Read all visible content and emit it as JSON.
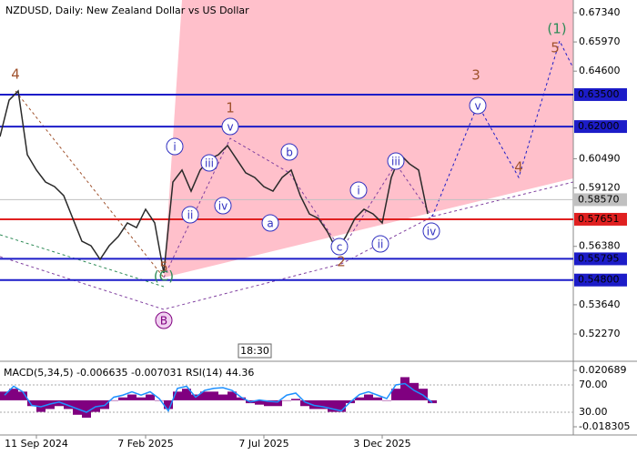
{
  "chart_data": [
    {
      "type": "line",
      "title": "NZDUSD, Daily:  New Zealand Dollar vs US Dollar",
      "categories": [
        null,
        null,
        null,
        null,
        "11 Sep 2024",
        null,
        null,
        null,
        null,
        null,
        null,
        null,
        null,
        null,
        null,
        null,
        "7 Feb 2025",
        null,
        null,
        null,
        null,
        null,
        null,
        null,
        null,
        null,
        null,
        null,
        null,
        "7 Jul 2025",
        null,
        null,
        null,
        null,
        null,
        null,
        null,
        null,
        null,
        null,
        null,
        null,
        "3 Dec 2025",
        null,
        null,
        null,
        null,
        null,
        null,
        null,
        null,
        null,
        null,
        null,
        null,
        null,
        null,
        null,
        null,
        null,
        null,
        null,
        null,
        null
      ],
      "values": [
        0.6153,
        0.6324,
        0.6367,
        0.6068,
        0.5996,
        0.594,
        0.5918,
        0.5876,
        0.5769,
        0.5662,
        0.5641,
        0.5577,
        0.5641,
        0.5684,
        0.5748,
        0.5726,
        0.5812,
        0.5748,
        0.5513,
        0.594,
        0.5996,
        0.5897,
        0.5996,
        0.6047,
        0.6068,
        0.6111,
        0.6047,
        0.5983,
        0.5961,
        0.5918,
        0.5897,
        0.5961,
        0.5996,
        0.5876,
        0.579,
        0.5769,
        0.5705,
        0.562,
        0.5684,
        0.5769,
        0.5812,
        0.579,
        0.5748,
        0.5961,
        0.6068,
        0.6025,
        0.5996,
        0.579,
        null,
        null,
        null,
        null,
        null,
        null,
        null,
        null,
        null,
        null,
        null,
        null,
        null,
        null,
        null,
        null
      ],
      "color": "#2a2a2a",
      "ylim": [
        0.5227,
        0.6734
      ],
      "yticks": [
        {
          "value": 0.6734,
          "label": "0.67340"
        },
        {
          "value": 0.6597,
          "label": "0.65970"
        },
        {
          "value": 0.646,
          "label": "0.64600"
        },
        {
          "value": 0.6049,
          "label": "0.60490"
        },
        {
          "value": 0.5912,
          "label": "0.59120"
        },
        {
          "value": 0.5638,
          "label": "0.56380"
        },
        {
          "value": 0.5364,
          "label": "0.53640"
        },
        {
          "value": 0.5227,
          "label": "0.52270"
        }
      ],
      "levels": [
        {
          "value": 0.635,
          "label": "0.63500",
          "color": "#1c1cc8"
        },
        {
          "value": 0.62,
          "label": "0.62000",
          "color": "#1c1cc8"
        },
        {
          "value": 0.5857,
          "label": "0.58570",
          "color": "#c0c0c0"
        },
        {
          "value": 0.57651,
          "label": "0.57651",
          "color": "#e02020"
        },
        {
          "value": 0.55795,
          "label": "0.55795",
          "color": "#1c1cc8"
        },
        {
          "value": 0.548,
          "label": "0.54800",
          "color": "#1c1cc8"
        }
      ],
      "annotations": [
        "4",
        "1",
        "3",
        "(1)",
        "5",
        "4",
        "5",
        "(C)",
        "B",
        "2",
        "i",
        "ii",
        "iii",
        "iv",
        "v",
        "a",
        "b",
        "c",
        "i",
        "ii",
        "iii",
        "iv",
        "v"
      ],
      "time_label": "18:30"
    },
    {
      "type": "bar",
      "title": "MACD(5,34,5) -0.006635 -0.007031 RSI(14) 44.36",
      "values": [
        0.006,
        0.008,
        0.006,
        -0.004,
        -0.008,
        -0.006,
        -0.004,
        -0.006,
        -0.01,
        -0.012,
        -0.008,
        -0.006,
        0.0,
        0.002,
        0.004,
        0.002,
        0.004,
        0.0,
        -0.006,
        0.006,
        0.008,
        0.004,
        0.006,
        0.006,
        0.004,
        0.006,
        0.002,
        -0.002,
        -0.003,
        -0.004,
        -0.004,
        0.0,
        0.001,
        -0.004,
        -0.006,
        -0.006,
        -0.008,
        -0.008,
        -0.002,
        0.002,
        0.004,
        0.002,
        0.0,
        0.008,
        0.016,
        0.012,
        0.008,
        -0.002
      ],
      "color": "#800080",
      "ylim": [
        -0.018305,
        0.020689
      ],
      "yticks": [
        {
          "value": 0.020689,
          "label": "0.020689"
        },
        {
          "value": -0.018305,
          "label": "-0.018305"
        }
      ],
      "rsi": {
        "values": [
          55,
          68,
          60,
          40,
          38,
          42,
          45,
          40,
          35,
          30,
          38,
          40,
          52,
          55,
          60,
          55,
          60,
          50,
          32,
          65,
          68,
          52,
          62,
          65,
          66,
          62,
          52,
          45,
          48,
          46,
          45,
          55,
          58,
          45,
          40,
          38,
          35,
          32,
          45,
          56,
          60,
          55,
          50,
          70,
          72,
          62,
          55,
          44
        ],
        "color": "#1e90ff",
        "ylim": [
          0,
          100
        ],
        "yticks": [
          {
            "value": 70,
            "label": "70.00"
          },
          {
            "value": 30,
            "label": "30.00"
          }
        ]
      }
    }
  ]
}
